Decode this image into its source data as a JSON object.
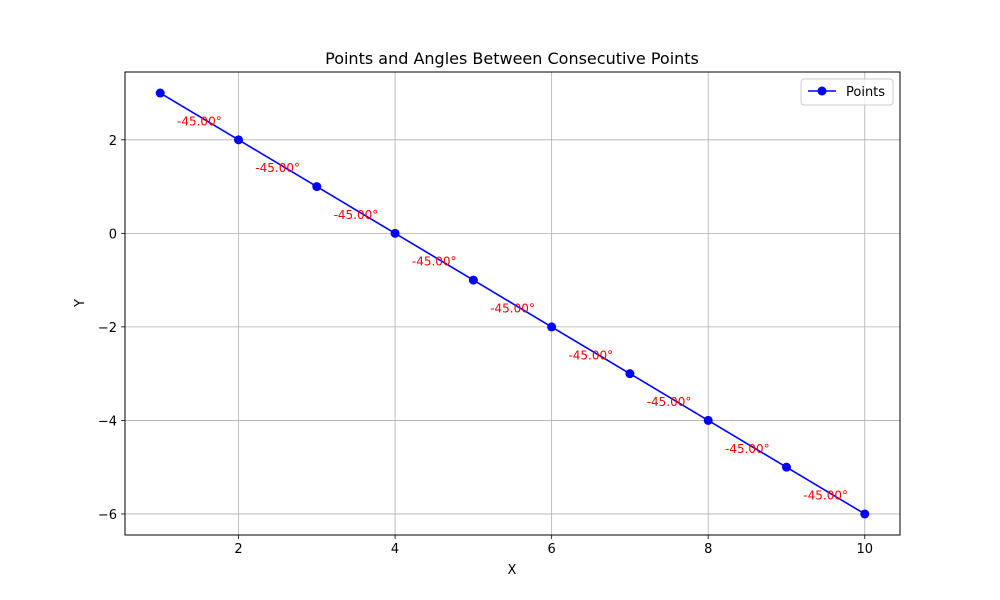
{
  "chart_data": {
    "type": "line",
    "title": "Points and Angles Between Consecutive Points",
    "xlabel": "X",
    "ylabel": "Y",
    "xlim": [
      0.55,
      10.45
    ],
    "ylim": [
      -6.45,
      3.45
    ],
    "xticks": [
      2,
      4,
      6,
      8,
      10
    ],
    "yticks": [
      2,
      0,
      -2,
      -4,
      -6
    ],
    "ytick_labels": [
      "2",
      "0",
      "−2",
      "−4",
      "−6"
    ],
    "grid": true,
    "legend_position": "top-right",
    "series": [
      {
        "name": "Points",
        "color": "#0000ff",
        "marker": "circle",
        "x": [
          1,
          2,
          3,
          4,
          5,
          6,
          7,
          8,
          9,
          10
        ],
        "y": [
          3,
          2,
          1,
          0,
          -1,
          -2,
          -3,
          -4,
          -5,
          -6
        ]
      }
    ],
    "annotations": {
      "color": "#ff0000",
      "labels": [
        "-45.00°",
        "-45.00°",
        "-45.00°",
        "-45.00°",
        "-45.00°",
        "-45.00°",
        "-45.00°",
        "-45.00°",
        "-45.00°"
      ]
    }
  }
}
